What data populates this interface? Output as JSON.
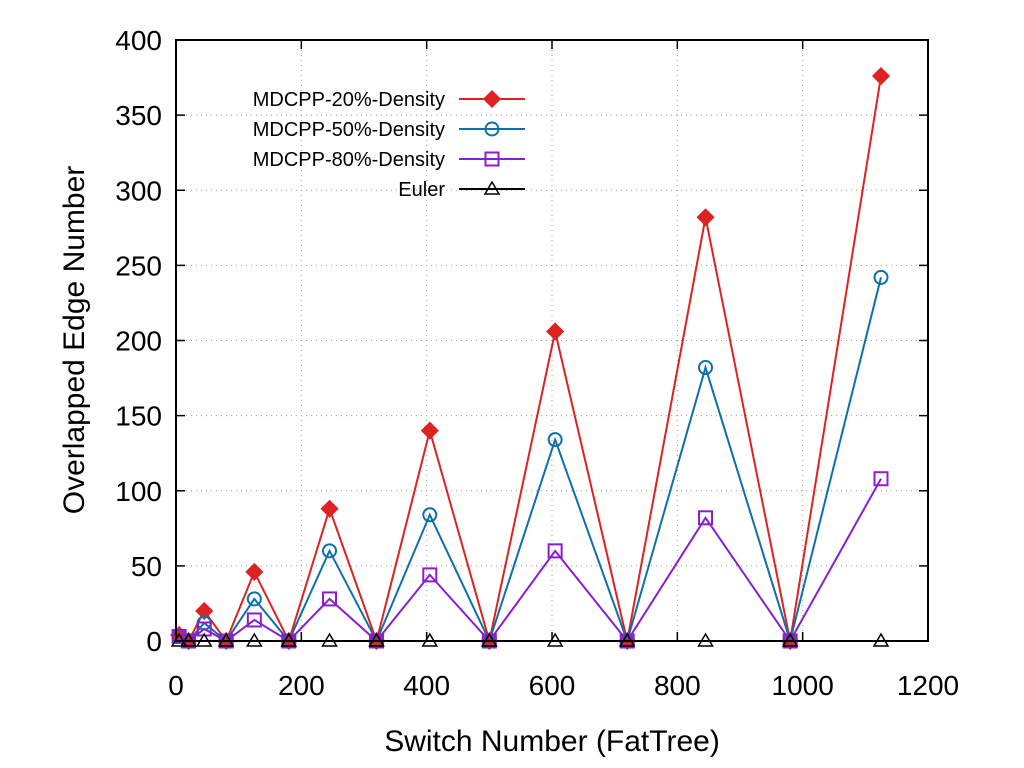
{
  "chart_data": {
    "type": "line",
    "xlabel": "Switch Number (FatTree)",
    "ylabel": "Overlapped Edge Number",
    "xlim": [
      0,
      1200
    ],
    "ylim": [
      0,
      400
    ],
    "xticks": [
      0,
      200,
      400,
      600,
      800,
      1000,
      1200
    ],
    "yticks": [
      0,
      50,
      100,
      150,
      200,
      250,
      300,
      350,
      400
    ],
    "grid": true,
    "legend_position": "top-left",
    "x": [
      5,
      20,
      45,
      80,
      125,
      180,
      245,
      320,
      405,
      500,
      605,
      720,
      845,
      980,
      1125
    ],
    "series": [
      {
        "name": "MDCPP-20%-Density",
        "color": "#dd2222",
        "marker": "filled-diamond",
        "values": [
          4,
          0,
          20,
          0,
          46,
          0,
          88,
          0,
          140,
          0,
          206,
          0,
          282,
          0,
          376
        ]
      },
      {
        "name": "MDCPP-50%-Density",
        "color": "#0f6fa8",
        "marker": "open-circle",
        "values": [
          3,
          0,
          12,
          0,
          28,
          0,
          60,
          0,
          84,
          0,
          134,
          0,
          182,
          0,
          242
        ]
      },
      {
        "name": "MDCPP-80%-Density",
        "color": "#8a1ecf",
        "marker": "open-square",
        "values": [
          3,
          0,
          8,
          0,
          14,
          0,
          28,
          0,
          44,
          0,
          60,
          0,
          82,
          0,
          108
        ]
      },
      {
        "name": "Euler",
        "color": "#000000",
        "marker": "open-triangle",
        "values": [
          0,
          0,
          0,
          0,
          0,
          0,
          0,
          0,
          0,
          0,
          0,
          0,
          0,
          0,
          0
        ]
      }
    ]
  }
}
